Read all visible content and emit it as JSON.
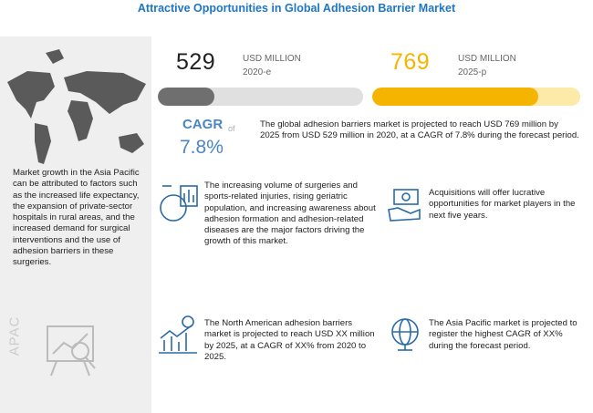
{
  "title": "Attractive Opportunities in Global Adhesion Barrier Market",
  "market_size": [
    {
      "value": "529",
      "unit": "USD MILLION",
      "year": "2020-e"
    },
    {
      "value": "769",
      "unit": "USD MILLION",
      "year": "2025-p"
    }
  ],
  "cagr": {
    "label": "CAGR",
    "of": "of",
    "value": "7.8%"
  },
  "summary": "The global adhesion barriers market is projected to reach USD 769 million by 2025 from USD 529 million in 2020, at a CAGR of 7.8% during the forecast period.",
  "side_panel": {
    "text": "Market growth in the Asia Pacific can be attributed to factors such as the increased life expectancy, the expansion of private-sector hospitals in rural areas, and the increased demand for surgical interventions and the use of adhesion barriers in these surgeries.",
    "region": "APAC"
  },
  "insights": [
    "The increasing volume of surgeries and sports-related injuries, rising geriatric population, and increasing awareness about adhesion formation and adhesion-related diseases are the major factors driving the growth of this market.",
    "Acquisitions will offer lucrative opportunities for market players in the next five years.",
    "The North American adhesion barriers market is projected to reach USD XX million by 2025, at a CAGR of XX% from 2020 to 2025.",
    "The Asia Pacific market is projected to register the highest CAGR of XX% during the forecast period."
  ]
}
